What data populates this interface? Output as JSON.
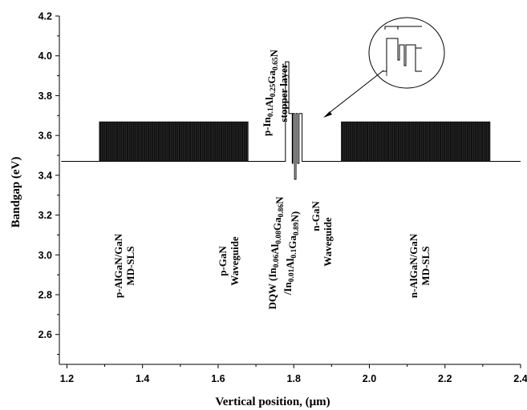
{
  "chart_data": {
    "type": "line",
    "xlabel": "Vertical position, (μm)",
    "ylabel": "Bandgap (eV)",
    "xlim": [
      1.18,
      2.4
    ],
    "ylim": [
      2.45,
      4.2
    ],
    "xticks": [
      "1.2",
      "1.4",
      "1.6",
      "1.8",
      "2.0",
      "2.2",
      "2.4"
    ],
    "yticks": [
      "2.6",
      "2.8",
      "3.0",
      "3.2",
      "3.4",
      "3.6",
      "3.8",
      "4.0",
      "4.2"
    ],
    "grid": false,
    "legend": "none",
    "series": [
      {
        "baseline_eV": 3.47,
        "superlattice_high_eV": 3.67,
        "p_sls_range_um": [
          1.285,
          1.68
        ],
        "n_sls_range_um": [
          1.925,
          2.32
        ],
        "x": [
          1.185,
          1.778,
          1.778,
          1.787,
          1.787,
          1.796,
          1.796,
          1.798,
          1.798,
          1.802,
          1.802,
          1.806,
          1.806,
          1.81,
          1.81,
          1.814,
          1.814,
          1.818,
          1.818,
          1.822,
          1.822,
          1.826,
          1.826,
          2.4
        ],
        "y": [
          3.47,
          3.47,
          3.97,
          3.97,
          3.71,
          3.71,
          3.46,
          3.46,
          3.71,
          3.71,
          3.38,
          3.38,
          3.71,
          3.71,
          3.46,
          3.46,
          3.71,
          3.71,
          3.71,
          3.71,
          3.47,
          3.47,
          3.47,
          3.47
        ]
      }
    ],
    "annotations": {
      "p_sls": [
        "p-AlGaN/GaN",
        "MD-SLS"
      ],
      "p_wg": [
        "p-GaN",
        "Waveguide"
      ],
      "dqw_line1": [
        {
          "t": "DQW (In"
        },
        {
          "t": "0.06",
          "sub": true
        },
        {
          "t": "Al"
        },
        {
          "t": "0.08",
          "sub": true
        },
        {
          "t": "Ga"
        },
        {
          "t": "0.86",
          "sub": true
        },
        {
          "t": "N"
        }
      ],
      "dqw_line2": [
        {
          "t": "/In"
        },
        {
          "t": "0.01",
          "sub": true
        },
        {
          "t": "Al"
        },
        {
          "t": "0.1",
          "sub": true
        },
        {
          "t": "Ga"
        },
        {
          "t": "0.89",
          "sub": true
        },
        {
          "t": "N)"
        }
      ],
      "stopper_line1": [
        {
          "t": "p-In"
        },
        {
          "t": "0.1",
          "sub": true
        },
        {
          "t": "Al"
        },
        {
          "t": "0.25",
          "sub": true
        },
        {
          "t": "Ga"
        },
        {
          "t": "0.65",
          "sub": true
        },
        {
          "t": "N"
        }
      ],
      "stopper_line2": "stopper layer",
      "n_gan": "n-GaN",
      "n_wg": "Waveguide",
      "n_sls": [
        "n-AlGaN/GaN",
        "MD-SLS"
      ]
    }
  }
}
